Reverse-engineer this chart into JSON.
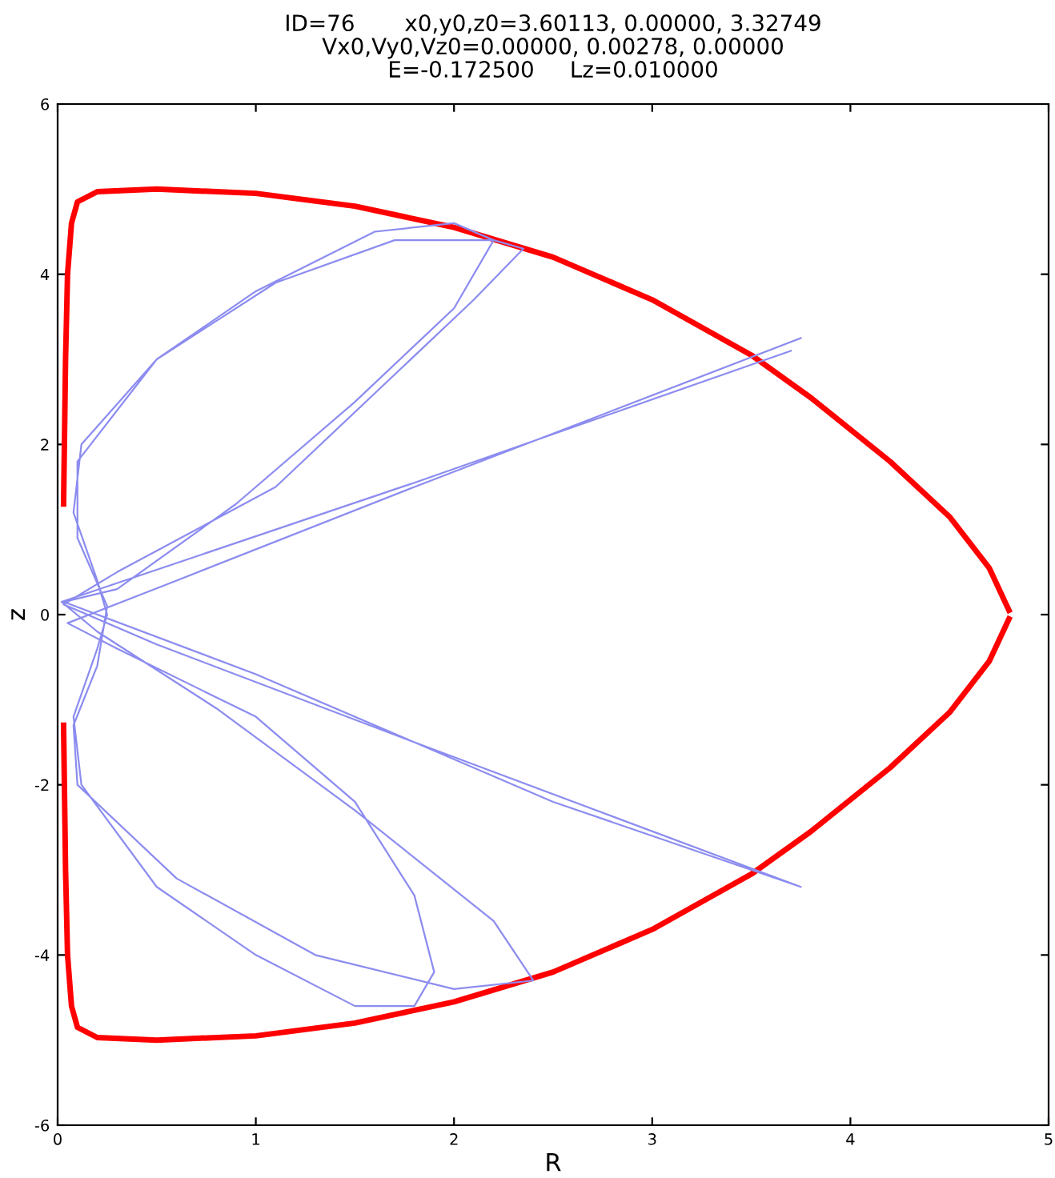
{
  "chart_data": {
    "type": "line",
    "title": "ID=76       x0,y0,z0=3.60113, 0.00000, 3.32749\nVx0,Vy0,Vz0=0.00000, 0.00278, 0.00000\nE=-0.172500     Lz=0.010000",
    "xlabel": "R",
    "ylabel": "z",
    "xlim": [
      0,
      5
    ],
    "ylim": [
      -6,
      6
    ],
    "xticks": [
      0,
      1,
      2,
      3,
      4,
      5
    ],
    "yticks": [
      -6,
      -4,
      -2,
      0,
      2,
      4,
      6
    ],
    "grid": false,
    "legend": false,
    "marker": "none",
    "line_style": "solid",
    "series": [
      {
        "color": "#ff0000",
        "x": [
          0.03,
          0.04,
          0.05,
          0.07,
          0.1,
          0.2,
          0.5,
          1.0,
          1.5,
          2.0,
          2.5,
          3.0,
          3.5,
          3.8,
          4.2,
          4.5,
          4.7,
          4.8
        ],
        "values": [
          1.3,
          3.0,
          4.0,
          4.6,
          4.85,
          4.97,
          5.0,
          4.95,
          4.8,
          4.55,
          4.2,
          3.7,
          3.05,
          2.55,
          1.8,
          1.15,
          0.55,
          0.05
        ]
      },
      {
        "color": "#ff0000",
        "x": [
          0.03,
          0.04,
          0.05,
          0.07,
          0.1,
          0.2,
          0.5,
          1.0,
          1.5,
          2.0,
          2.5,
          3.0,
          3.5,
          3.8,
          4.2,
          4.5,
          4.7,
          4.8
        ],
        "values": [
          -1.3,
          -3.0,
          -4.0,
          -4.6,
          -4.85,
          -4.97,
          -5.0,
          -4.95,
          -4.8,
          -4.55,
          -4.2,
          -3.7,
          -3.05,
          -2.55,
          -1.8,
          -1.15,
          -0.55,
          -0.05
        ]
      },
      {
        "color": "#8c8cf0",
        "x": [
          3.75,
          1.8,
          0.6,
          0.05,
          0.3,
          1.0,
          1.5,
          1.8,
          1.9,
          1.8,
          1.5,
          1.0,
          0.5,
          0.12,
          0.08,
          0.2,
          0.25,
          0.2,
          0.08,
          0.12,
          0.5,
          1.0,
          1.6,
          2.0,
          2.2,
          2.0,
          1.5,
          0.9,
          0.3,
          0.03,
          1.0,
          2.5,
          3.75,
          1.8,
          0.5,
          0.03,
          0.3,
          1.1,
          1.6,
          2.1,
          2.35,
          2.2,
          1.7,
          1.1,
          0.5,
          0.1,
          0.1,
          0.25,
          0.2,
          0.08,
          0.1,
          0.6,
          1.3,
          2.0,
          2.4,
          2.2,
          1.5,
          0.8,
          0.2,
          0.02,
          1.8,
          3.7
        ],
        "values": [
          3.25,
          1.5,
          0.4,
          -0.1,
          -0.4,
          -1.2,
          -2.2,
          -3.3,
          -4.2,
          -4.6,
          -4.6,
          -4.0,
          -3.2,
          -2.0,
          -1.2,
          -0.4,
          0.0,
          0.4,
          1.2,
          2.0,
          3.0,
          3.8,
          4.5,
          4.6,
          4.4,
          3.6,
          2.5,
          1.3,
          0.3,
          0.15,
          -0.7,
          -2.2,
          -3.2,
          -1.5,
          -0.35,
          0.12,
          0.5,
          1.5,
          2.6,
          3.7,
          4.3,
          4.4,
          4.4,
          3.9,
          3.0,
          1.8,
          0.9,
          0.1,
          -0.6,
          -1.3,
          -2.0,
          -3.1,
          -4.0,
          -4.4,
          -4.3,
          -3.6,
          -2.3,
          -1.1,
          -0.2,
          0.15,
          1.55,
          3.1
        ]
      }
    ]
  }
}
